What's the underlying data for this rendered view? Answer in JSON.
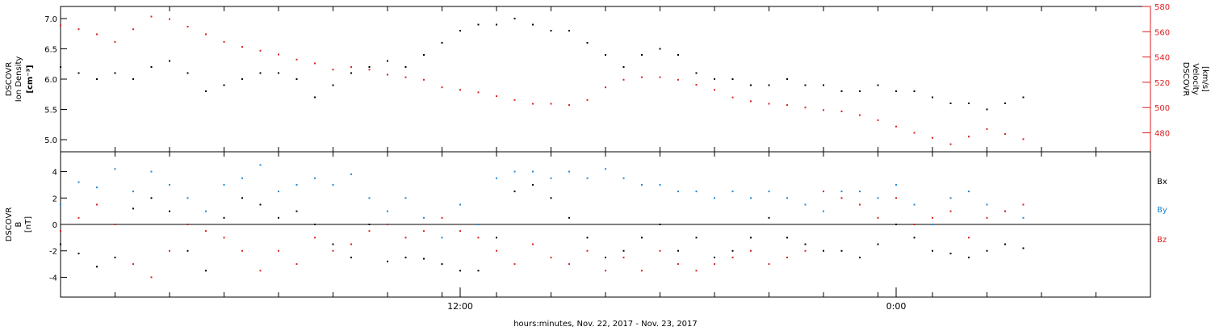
{
  "xlabel": "hours:minutes, Nov. 22, 2017 - Nov. 23, 2017",
  "x_tick_labels": [
    "12:00",
    "0:00"
  ],
  "colors": {
    "density": "#000000",
    "velocity": "#dd1f1f",
    "bx": "#000000",
    "by": "#1e88d8",
    "bz": "#dd1f1f",
    "axis": "#000000"
  },
  "chart_data": [
    {
      "type": "scatter",
      "panel": "top",
      "left_axis": {
        "label_lines": [
          "DSCOVR",
          "Ion Density",
          "[cm⁻³]"
        ],
        "ticks": [
          "5.0",
          "5.5",
          "6.0",
          "6.5",
          "7.0"
        ],
        "range": [
          4.8,
          7.2
        ]
      },
      "right_axis": {
        "label_lines": [
          "DSCOVR",
          "Velocity",
          "[km/s]"
        ],
        "ticks": [
          "480",
          "500",
          "520",
          "540",
          "560",
          "580"
        ],
        "range": [
          465,
          580
        ]
      },
      "x_range_hours": [
        0,
        30
      ],
      "series": [
        {
          "name": "",
          "axis": "left",
          "x": [
            0,
            0.5,
            1,
            1.5,
            2,
            2.5,
            3,
            3.5,
            4,
            4.5,
            5,
            5.5,
            6,
            6.5,
            7,
            7.5,
            8,
            8.5,
            9,
            9.5,
            10,
            10.5,
            11,
            11.5,
            12,
            12.5,
            13,
            13.5,
            14,
            14.5,
            15,
            15.5,
            16,
            16.5,
            17,
            17.5,
            18,
            18.5,
            19,
            19.5,
            20,
            20.5,
            21,
            21.5,
            22,
            22.5,
            23,
            23.5,
            24,
            24.5,
            25,
            25.5,
            26,
            26.5
          ],
          "values": [
            6.2,
            6.1,
            6.0,
            6.1,
            6.0,
            6.2,
            6.3,
            6.1,
            5.8,
            5.9,
            6.0,
            6.1,
            6.1,
            6.0,
            5.7,
            5.9,
            6.1,
            6.2,
            6.3,
            6.2,
            6.4,
            6.6,
            6.8,
            6.9,
            6.9,
            7.0,
            6.9,
            6.8,
            6.8,
            6.6,
            6.4,
            6.2,
            6.4,
            6.5,
            6.4,
            6.1,
            6.0,
            6.0,
            5.9,
            5.9,
            6.0,
            5.9,
            5.9,
            5.8,
            5.8,
            5.9,
            5.8,
            5.8,
            5.7,
            5.6,
            5.6,
            5.5,
            5.6,
            5.7
          ]
        },
        {
          "name": "",
          "axis": "right",
          "x": [
            0,
            0.5,
            1,
            1.5,
            2,
            2.5,
            3,
            3.5,
            4,
            4.5,
            5,
            5.5,
            6,
            6.5,
            7,
            7.5,
            8,
            8.5,
            9,
            9.5,
            10,
            10.5,
            11,
            11.5,
            12,
            12.5,
            13,
            13.5,
            14,
            14.5,
            15,
            15.5,
            16,
            16.5,
            17,
            17.5,
            18,
            18.5,
            19,
            19.5,
            20,
            20.5,
            21,
            21.5,
            22,
            22.5,
            23,
            23.5,
            24,
            24.5,
            25,
            25.5,
            26,
            26.5
          ],
          "values": [
            565,
            562,
            558,
            552,
            562,
            572,
            570,
            564,
            558,
            552,
            548,
            545,
            542,
            538,
            535,
            530,
            532,
            530,
            526,
            524,
            522,
            516,
            514,
            512,
            509,
            506,
            503,
            503,
            502,
            506,
            516,
            522,
            524,
            524,
            522,
            518,
            514,
            508,
            505,
            503,
            502,
            500,
            498,
            497,
            494,
            490,
            485,
            480,
            476,
            471,
            477,
            483,
            479,
            475
          ]
        }
      ]
    },
    {
      "type": "scatter",
      "panel": "bottom",
      "left_axis": {
        "label_lines": [
          "DSCOVR",
          "B",
          "[nT]"
        ],
        "ticks": [
          "-4",
          "-2",
          "0",
          "2",
          "4"
        ],
        "range": [
          -5.5,
          5.5
        ]
      },
      "x_range_hours": [
        0,
        30
      ],
      "zero_line": true,
      "series": [
        {
          "name": "Bx",
          "color_key": "bx",
          "x": [
            0,
            0.5,
            1,
            1.5,
            2,
            2.5,
            3,
            3.5,
            4,
            4.5,
            5,
            5.5,
            6,
            6.5,
            7,
            7.5,
            8,
            8.5,
            9,
            9.5,
            10,
            10.5,
            11,
            11.5,
            12,
            12.5,
            13,
            13.5,
            14,
            14.5,
            15,
            15.5,
            16,
            16.5,
            17,
            17.5,
            18,
            18.5,
            19,
            19.5,
            20,
            20.5,
            21,
            21.5,
            22,
            22.5,
            23,
            23.5,
            24,
            24.5,
            25,
            25.5,
            26,
            26.5
          ],
          "values": [
            -1.5,
            -2.2,
            -3.2,
            -2.5,
            1.2,
            2.0,
            1.0,
            -2.0,
            -3.5,
            0.5,
            2.0,
            1.5,
            0.5,
            1.0,
            0.0,
            -1.5,
            -2.5,
            0.0,
            -2.8,
            -2.5,
            -2.6,
            -3.0,
            -3.5,
            -3.5,
            -1.0,
            2.5,
            3.0,
            2.0,
            0.5,
            -1.0,
            -2.5,
            -2.0,
            -1.0,
            0.0,
            -2.0,
            -1.0,
            -2.5,
            -2.0,
            -1.0,
            0.5,
            -1.0,
            -1.5,
            -2.0,
            -2.0,
            -2.5,
            -1.5,
            0.0,
            -1.0,
            -2.0,
            -2.2,
            -2.5,
            -2.0,
            -1.5,
            -1.8
          ]
        },
        {
          "name": "By",
          "color_key": "by",
          "x": [
            0,
            0.5,
            1,
            1.5,
            2,
            2.5,
            3,
            3.5,
            4,
            4.5,
            5,
            5.5,
            6,
            6.5,
            7,
            7.5,
            8,
            8.5,
            9,
            9.5,
            10,
            10.5,
            11,
            11.5,
            12,
            12.5,
            13,
            13.5,
            14,
            14.5,
            15,
            15.5,
            16,
            16.5,
            17,
            17.5,
            18,
            18.5,
            19,
            19.5,
            20,
            20.5,
            21,
            21.5,
            22,
            22.5,
            23,
            23.5,
            24,
            24.5,
            25,
            25.5,
            26,
            26.5
          ],
          "values": [
            1.5,
            3.2,
            2.8,
            4.2,
            2.5,
            4.0,
            3.0,
            2.0,
            1.0,
            3.0,
            3.5,
            4.5,
            2.5,
            3.0,
            3.5,
            3.0,
            3.8,
            2.0,
            1.0,
            2.0,
            0.5,
            -1.0,
            1.5,
            0.0,
            3.5,
            4.0,
            4.0,
            3.5,
            4.0,
            3.5,
            4.2,
            3.5,
            3.0,
            3.0,
            2.5,
            2.5,
            2.0,
            2.5,
            2.0,
            2.5,
            2.0,
            1.5,
            1.0,
            2.5,
            2.5,
            2.0,
            3.0,
            1.5,
            0.0,
            2.0,
            2.5,
            1.5,
            1.0,
            0.5
          ]
        },
        {
          "name": "Bz",
          "color_key": "bz",
          "x": [
            0,
            0.5,
            1,
            1.5,
            2,
            2.5,
            3,
            3.5,
            4,
            4.5,
            5,
            5.5,
            6,
            6.5,
            7,
            7.5,
            8,
            8.5,
            9,
            9.5,
            10,
            10.5,
            11,
            11.5,
            12,
            12.5,
            13,
            13.5,
            14,
            14.5,
            15,
            15.5,
            16,
            16.5,
            17,
            17.5,
            18,
            18.5,
            19,
            19.5,
            20,
            20.5,
            21,
            21.5,
            22,
            22.5,
            23,
            23.5,
            24,
            24.5,
            25,
            25.5,
            26,
            26.5
          ],
          "values": [
            -0.5,
            0.5,
            1.5,
            0.0,
            -3.0,
            -4.0,
            -2.0,
            0.0,
            -0.5,
            -1.0,
            -2.0,
            -3.5,
            -2.0,
            -3.0,
            -1.0,
            -2.0,
            -1.5,
            -0.5,
            0.0,
            -1.0,
            -0.5,
            0.5,
            -0.5,
            -1.0,
            -2.0,
            -3.0,
            -1.5,
            -2.5,
            -3.0,
            -2.0,
            -3.5,
            -2.5,
            -3.5,
            -2.0,
            -3.0,
            -3.5,
            -3.0,
            -2.5,
            -2.0,
            -3.0,
            -2.5,
            -2.0,
            2.5,
            2.0,
            1.5,
            0.5,
            2.0,
            0.0,
            0.5,
            1.0,
            -1.0,
            0.5,
            1.0,
            1.5
          ]
        }
      ]
    }
  ]
}
